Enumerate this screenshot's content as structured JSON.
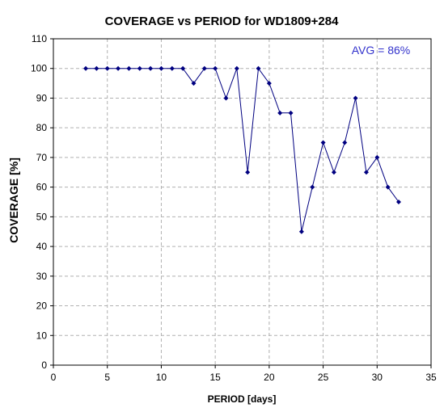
{
  "chart_data": {
    "type": "line",
    "title": "COVERAGE vs PERIOD for WD1809+284",
    "xlabel": "PERIOD [days]",
    "ylabel": "COVERAGE [%]",
    "xlim": [
      0,
      35
    ],
    "ylim": [
      0,
      110
    ],
    "xticks": [
      0,
      5,
      10,
      15,
      20,
      25,
      30,
      35
    ],
    "yticks": [
      0,
      10,
      20,
      30,
      40,
      50,
      60,
      70,
      80,
      90,
      100,
      110
    ],
    "grid": true,
    "legend": "none",
    "annotation": "AVG = 86%",
    "series": [
      {
        "color": "#000080",
        "x": [
          3,
          4,
          5,
          6,
          7,
          8,
          9,
          10,
          11,
          12,
          13,
          14,
          15,
          16,
          17,
          18,
          19,
          20,
          21,
          22,
          23,
          24,
          25,
          26,
          27,
          28,
          29,
          30,
          31,
          32
        ],
        "y": [
          100,
          100,
          100,
          100,
          100,
          100,
          100,
          100,
          100,
          100,
          95,
          100,
          100,
          90,
          100,
          65,
          100,
          95,
          85,
          85,
          45,
          60,
          75,
          65,
          75,
          90,
          65,
          70,
          60,
          55
        ]
      }
    ]
  },
  "colors": {
    "line": "#000080",
    "annotation": "#3333cc",
    "grid": "#b0b0b0"
  }
}
